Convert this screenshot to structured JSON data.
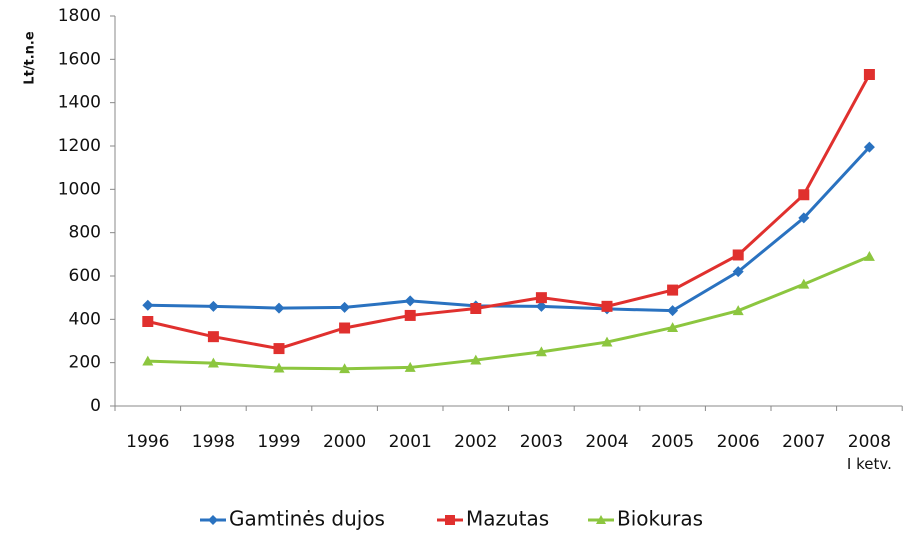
{
  "chart_data": {
    "type": "line",
    "y_label": "Lt/t.n.e",
    "categories": [
      "1996",
      "1998",
      "1999",
      "2000",
      "2001",
      "2002",
      "2003",
      "2004",
      "2005",
      "2006",
      "2007",
      "2008\nI ketv."
    ],
    "series": [
      {
        "name": "Gamtinės dujos",
        "color": "#2a72c0",
        "marker": "diamond",
        "values": [
          465,
          460,
          452,
          455,
          485,
          462,
          460,
          448,
          440,
          620,
          868,
          1195
        ]
      },
      {
        "name": "Mazutas",
        "color": "#e0302e",
        "marker": "square",
        "values": [
          390,
          320,
          265,
          360,
          418,
          450,
          500,
          460,
          535,
          697,
          975,
          1530
        ]
      },
      {
        "name": "Biokuras",
        "color": "#8cc63f",
        "marker": "triangle",
        "values": [
          207,
          198,
          175,
          172,
          178,
          212,
          250,
          295,
          362,
          440,
          562,
          690
        ]
      }
    ],
    "ylim": [
      0,
      1800
    ],
    "yticks": [
      0,
      200,
      400,
      600,
      800,
      1000,
      1200,
      1400,
      1600,
      1800
    ],
    "grid": false,
    "legend": "bottom"
  }
}
